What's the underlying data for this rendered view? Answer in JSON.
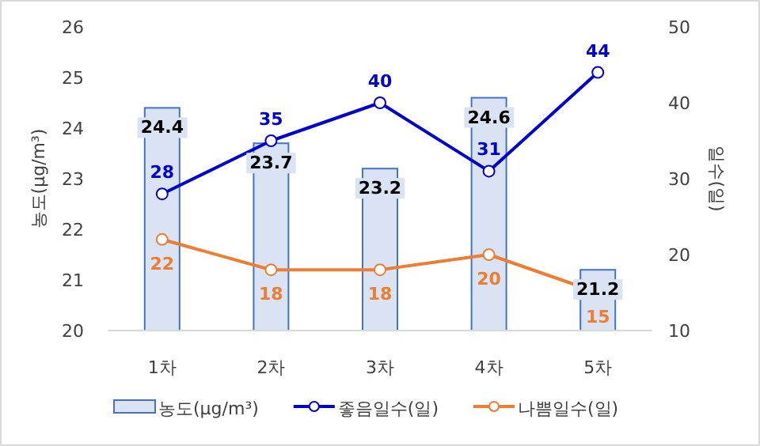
{
  "chart_data": {
    "type": "bar",
    "categories": [
      "1차",
      "2차",
      "3차",
      "4차",
      "5차"
    ],
    "ylabel": "농도(μg/m³)",
    "y2label": "일수(일)",
    "ylim": [
      20,
      26
    ],
    "yticks": [
      20,
      21,
      22,
      23,
      24,
      25,
      26
    ],
    "y2lim": [
      10,
      50
    ],
    "y2ticks": [
      10,
      20,
      30,
      40,
      50
    ],
    "legend": "bottom",
    "grid": false,
    "data_labels": true,
    "marker": "circle",
    "line_style": "solid",
    "series": [
      {
        "name": "농도(μg/m³)",
        "color": "#dae3f3",
        "values": [
          24.4,
          23.7,
          23.2,
          24.6,
          21.2
        ]
      },
      {
        "name": "좋음일수(일)",
        "type": "line",
        "axis": "y2",
        "color": "#0000cc",
        "values": [
          28,
          35,
          40,
          31,
          44
        ]
      },
      {
        "name": "나쁨일수(일)",
        "type": "line",
        "axis": "y2",
        "color": "#ed7d31",
        "values": [
          22,
          18,
          18,
          20,
          15
        ]
      }
    ]
  }
}
